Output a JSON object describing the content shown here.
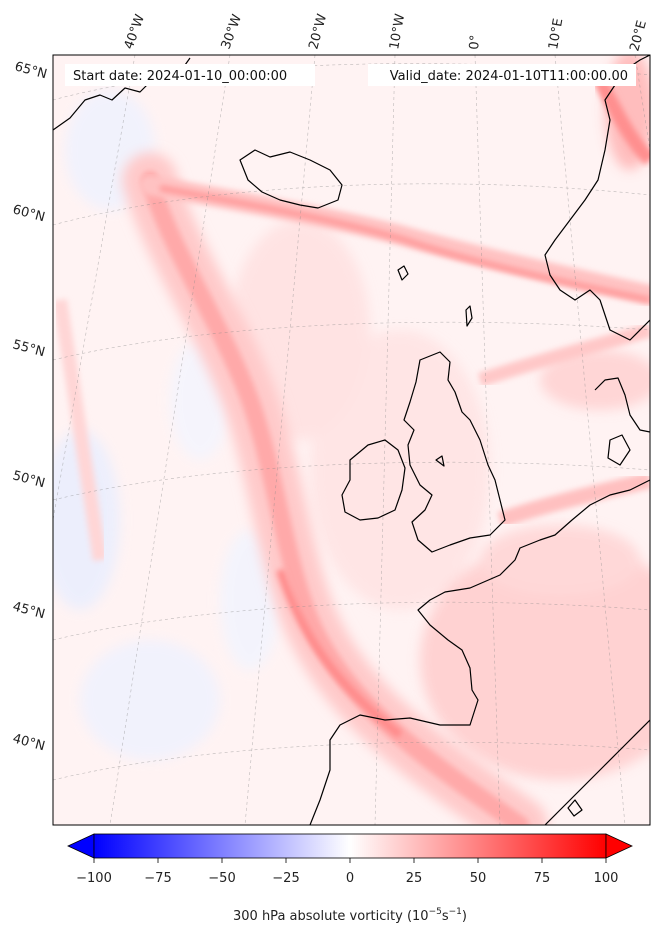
{
  "header": {
    "start_date": "Start date: 2024-01-10_00:00:00",
    "valid_date": "Valid_date: 2024-01-10T11:00:00.00"
  },
  "longitude_labels": [
    "40°W",
    "30°W",
    "20°W",
    "10°W",
    "0°",
    "10°E",
    "20°E"
  ],
  "latitude_labels": [
    "65°N",
    "60°N",
    "55°N",
    "50°N",
    "45°N",
    "40°N"
  ],
  "colorbar": {
    "label": "300 hPa absolute vorticity (10",
    "label_exp1": "−5",
    "label_mid": "s",
    "label_exp2": "−1",
    "label_end": ")",
    "min": -100,
    "max": 100,
    "ticks": [
      "−100",
      "−75",
      "−50",
      "−25",
      "0",
      "25",
      "50",
      "75",
      "100"
    ],
    "tick_values": [
      -100,
      -75,
      -50,
      -25,
      0,
      25,
      50,
      75,
      100
    ],
    "extend": "both",
    "cmap": "bwr",
    "color_min": "#0000ff",
    "color_mid": "#ffffff",
    "color_max": "#ff0000"
  },
  "colors": {
    "coastline": "#000000",
    "jet_band": "#ffbcbc",
    "jet_core": "#ff8f8f",
    "background": "#fff0f0",
    "negative_patch": "#e3e9ff"
  }
}
